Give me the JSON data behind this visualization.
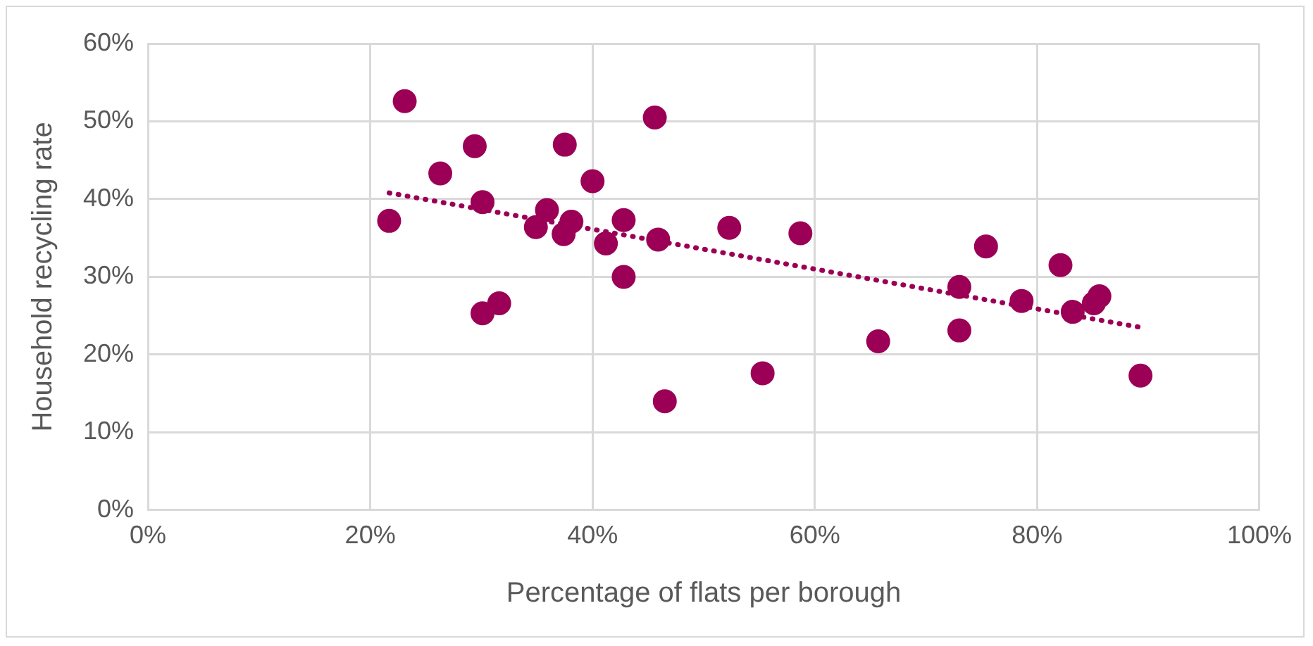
{
  "chart_data": {
    "type": "scatter",
    "xlabel": "Percentage of flats per borough",
    "ylabel": "Household recycling rate",
    "series": [
      {
        "color": "#9b0056",
        "marker": "circle",
        "x": [
          21.7,
          23.1,
          26.3,
          29.4,
          30.1,
          30.1,
          31.6,
          35.9,
          34.9,
          37.5,
          38.1,
          37.4,
          40.0,
          42.8,
          41.2,
          42.8,
          45.6,
          45.9,
          46.5,
          52.3,
          58.7,
          55.3,
          65.7,
          73.0,
          73.0,
          75.4,
          78.6,
          82.1,
          83.2,
          85.1,
          85.6,
          89.3
        ],
        "values": [
          37.2,
          52.6,
          43.3,
          46.8,
          39.6,
          25.3,
          26.6,
          38.6,
          36.4,
          47.0,
          37.1,
          35.5,
          42.3,
          37.3,
          34.3,
          30.0,
          50.5,
          34.8,
          14.0,
          36.3,
          35.6,
          17.6,
          21.7,
          28.7,
          23.1,
          33.9,
          26.9,
          31.5,
          25.5,
          26.6,
          27.5,
          17.3
        ]
      },
      {
        "type": "line",
        "color": "#9b0056",
        "marker": "none",
        "line_style": "dotted",
        "x": [
          21.7,
          89.3
        ],
        "values": [
          40.8,
          23.5
        ]
      }
    ],
    "xlim": [
      0,
      100
    ],
    "xticks": [
      {
        "value": 0,
        "label": "0%"
      },
      {
        "value": 20,
        "label": "20%"
      },
      {
        "value": 40,
        "label": "40%"
      },
      {
        "value": 60,
        "label": "60%"
      },
      {
        "value": 80,
        "label": "80%"
      },
      {
        "value": 100,
        "label": "100%"
      }
    ],
    "ylim": [
      0,
      60
    ],
    "yticks": [
      {
        "value": 0,
        "label": "0%"
      },
      {
        "value": 10,
        "label": "10%"
      },
      {
        "value": 20,
        "label": "20%"
      },
      {
        "value": 30,
        "label": "30%"
      },
      {
        "value": 40,
        "label": "40%"
      },
      {
        "value": 50,
        "label": "50%"
      },
      {
        "value": 60,
        "label": "60%"
      }
    ],
    "grid": true,
    "legend": false
  }
}
